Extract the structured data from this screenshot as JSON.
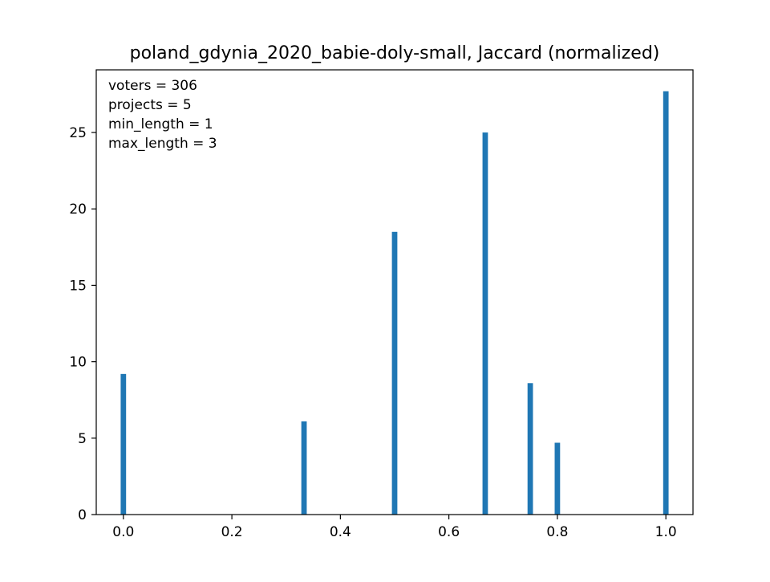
{
  "chart_data": {
    "type": "bar",
    "title": "poland_gdynia_2020_babie-doly-small, Jaccard (normalized)",
    "xlabel": "",
    "ylabel": "",
    "annotations": [
      "voters = 306",
      "projects = 5",
      "min_length = 1",
      "max_length = 3"
    ],
    "x": [
      0.0,
      0.333,
      0.5,
      0.667,
      0.75,
      0.8,
      1.0
    ],
    "values": [
      9.2,
      6.1,
      18.5,
      25.0,
      8.6,
      4.7,
      27.7
    ],
    "bin_width": 0.01,
    "xlim": [
      -0.05,
      1.05
    ],
    "ylim": [
      0,
      29.1
    ],
    "xticks": [
      0.0,
      0.2,
      0.4,
      0.6,
      0.8,
      1.0
    ],
    "xtick_labels": [
      "0.0",
      "0.2",
      "0.4",
      "0.6",
      "0.8",
      "1.0"
    ],
    "yticks": [
      0,
      5,
      10,
      15,
      20,
      25
    ],
    "ytick_labels": [
      "0",
      "5",
      "10",
      "15",
      "20",
      "25"
    ],
    "bar_color": "#1f77b4",
    "grid": false,
    "legend": "none"
  }
}
